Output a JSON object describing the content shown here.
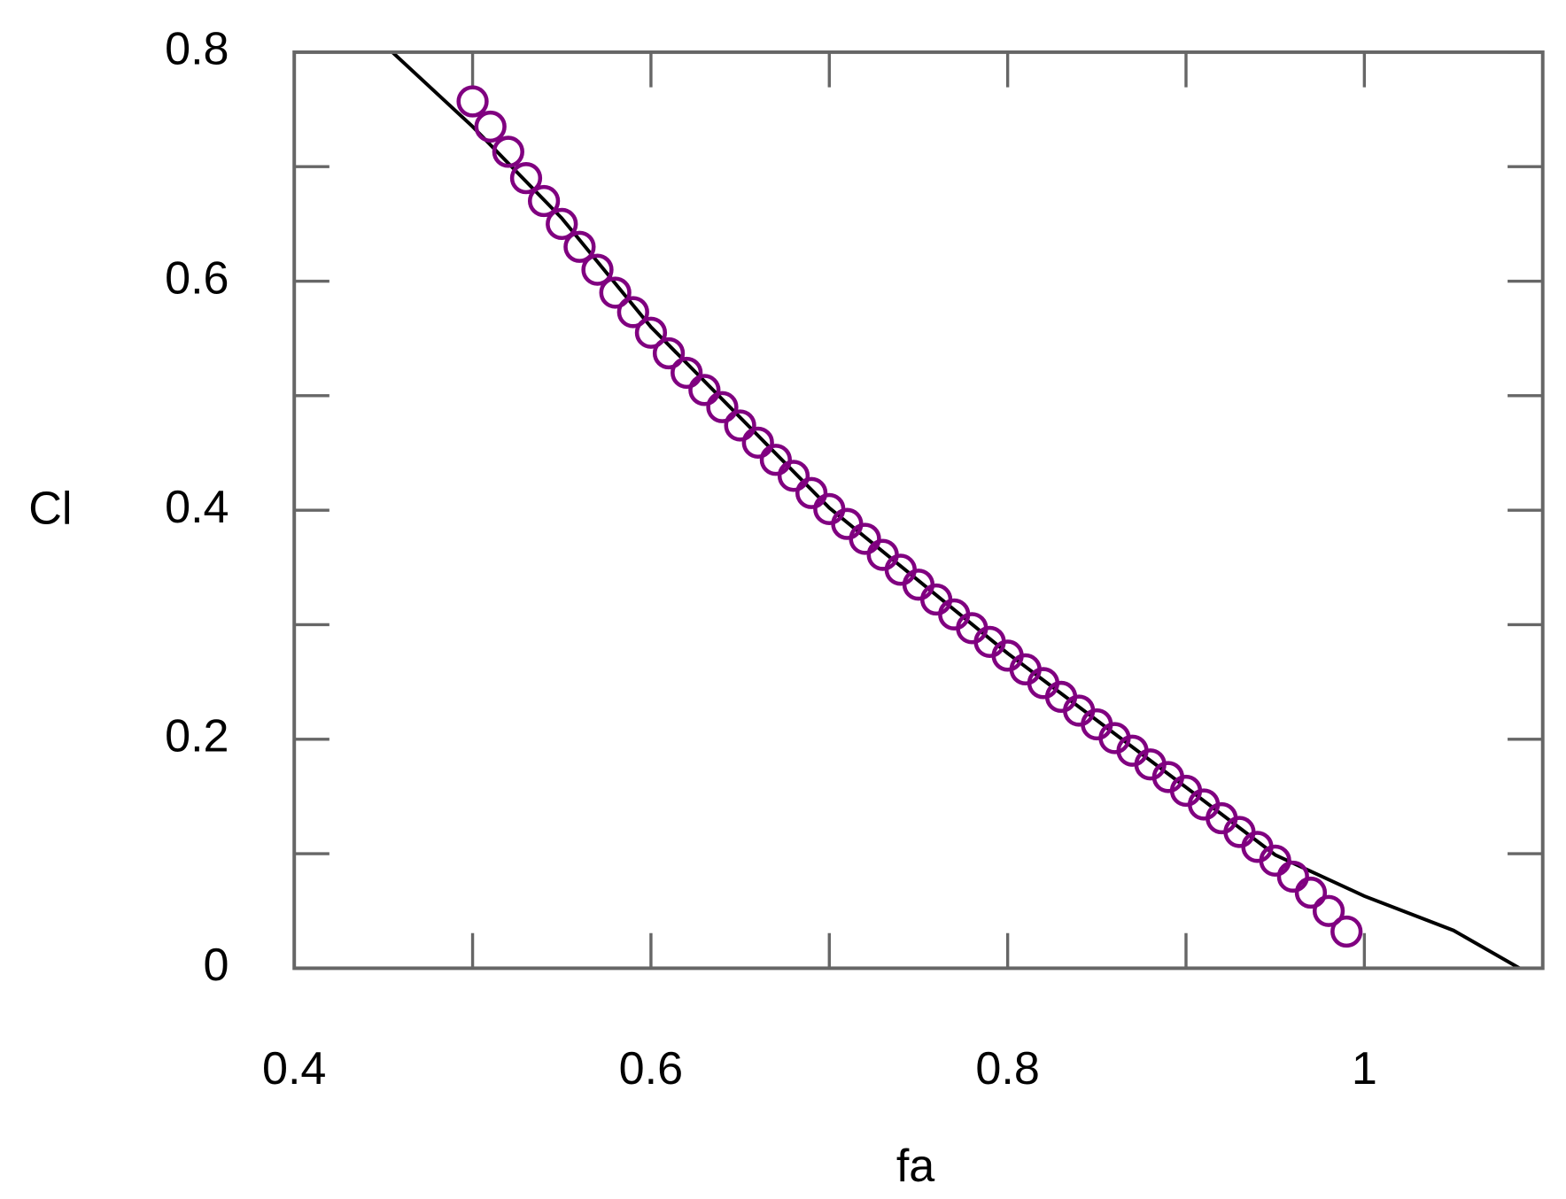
{
  "chart_data": {
    "type": "scatter",
    "x_label": "fa",
    "y_label": "Cl",
    "xlim": [
      0.4,
      1.1
    ],
    "ylim": [
      0,
      0.8
    ],
    "xticks": [
      0.4,
      0.6,
      0.8,
      1
    ],
    "xminorticks": [
      0.5,
      0.7,
      0.9
    ],
    "yticks": [
      0,
      0.2,
      0.4,
      0.6,
      0.8
    ],
    "yminorticks": [
      0.1,
      0.3,
      0.5,
      0.7
    ],
    "series": [
      {
        "type": "line",
        "color": "#000000",
        "x": [
          0.455,
          0.5,
          0.55,
          0.6,
          0.7,
          0.8,
          0.9,
          0.95,
          1.0,
          1.05,
          1.087
        ],
        "values": [
          0.8,
          0.735,
          0.655,
          0.56,
          0.402,
          0.275,
          0.158,
          0.099,
          0.063,
          0.033,
          0
        ]
      },
      {
        "type": "scatter",
        "color": "#800080",
        "x": [
          0.5,
          0.51,
          0.52,
          0.53,
          0.54,
          0.55,
          0.56,
          0.57,
          0.58,
          0.59,
          0.6,
          0.61,
          0.62,
          0.63,
          0.64,
          0.65,
          0.66,
          0.67,
          0.68,
          0.69,
          0.7,
          0.71,
          0.72,
          0.73,
          0.74,
          0.75,
          0.76,
          0.77,
          0.78,
          0.79,
          0.8,
          0.81,
          0.82,
          0.83,
          0.84,
          0.85,
          0.86,
          0.87,
          0.88,
          0.89,
          0.9,
          0.91,
          0.92,
          0.93,
          0.94,
          0.95,
          0.96,
          0.97,
          0.98,
          0.99
        ],
        "values": [
          0.757,
          0.735,
          0.713,
          0.69,
          0.67,
          0.65,
          0.63,
          0.61,
          0.59,
          0.573,
          0.555,
          0.537,
          0.52,
          0.505,
          0.49,
          0.474,
          0.459,
          0.444,
          0.43,
          0.415,
          0.401,
          0.388,
          0.375,
          0.361,
          0.348,
          0.335,
          0.322,
          0.309,
          0.297,
          0.285,
          0.273,
          0.261,
          0.249,
          0.237,
          0.225,
          0.213,
          0.201,
          0.19,
          0.178,
          0.167,
          0.155,
          0.143,
          0.131,
          0.119,
          0.106,
          0.094,
          0.08,
          0.066,
          0.05,
          0.032
        ]
      }
    ]
  }
}
